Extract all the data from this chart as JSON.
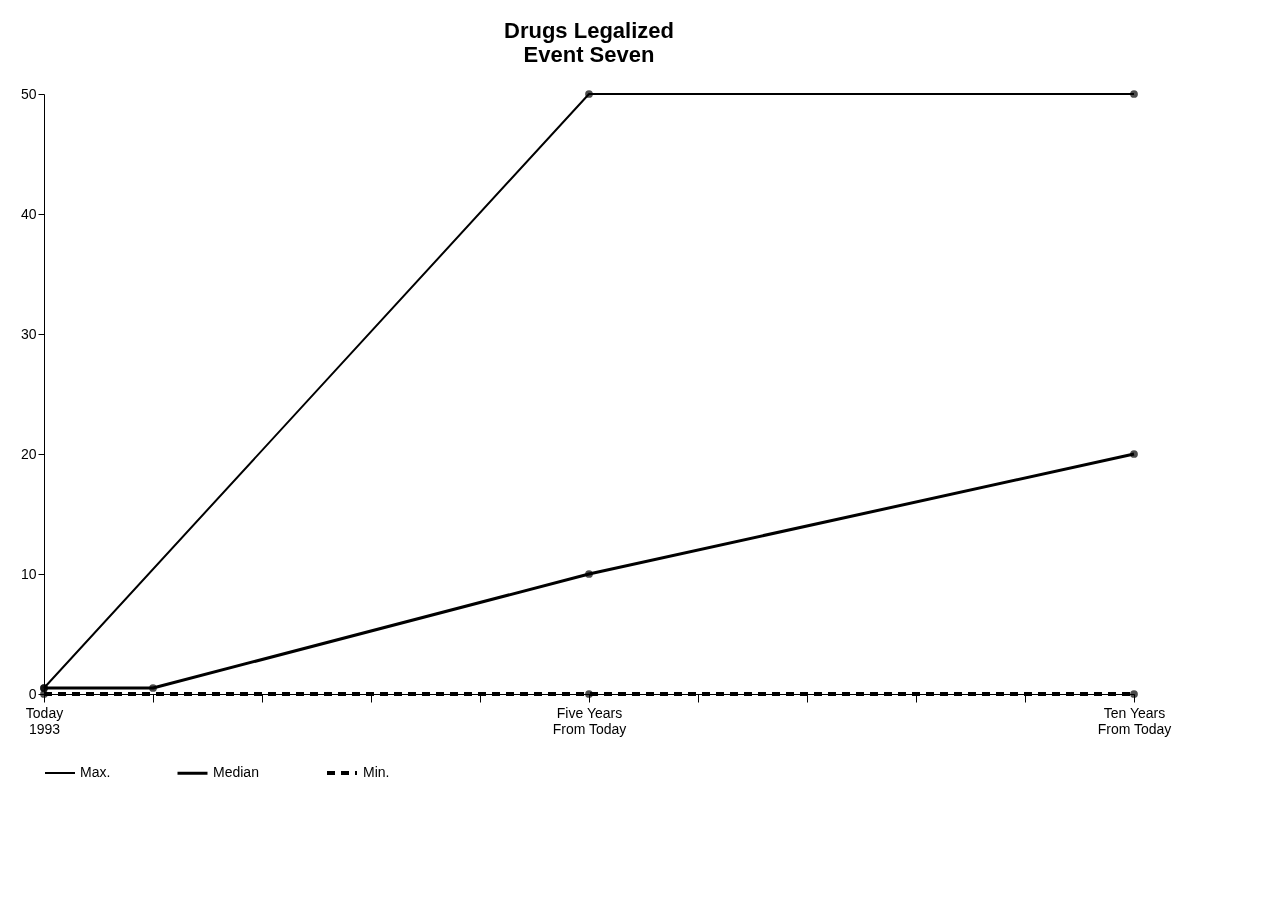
{
  "chart_data": {
    "type": "line",
    "title": "Drugs Legalized\nEvent Seven",
    "categories": [
      "Today\n1993",
      null,
      null,
      null,
      null,
      "Five Years\nFrom Today",
      null,
      null,
      null,
      null,
      "Ten Years\nFrom Today"
    ],
    "ylim": [
      0,
      50
    ],
    "yticks": [
      0,
      10,
      20,
      30,
      40,
      50
    ],
    "series": [
      {
        "name": "Max.",
        "color": "#000000",
        "line_style": "solid",
        "values": [
          0.5,
          null,
          null,
          null,
          null,
          50,
          null,
          null,
          null,
          null,
          50
        ]
      },
      {
        "name": "Median",
        "color": "#000000",
        "line_style": "solid",
        "values": [
          0.5,
          0.5,
          null,
          null,
          null,
          10,
          null,
          null,
          null,
          null,
          20
        ]
      },
      {
        "name": "Min.",
        "color": "#000000",
        "line_style": "dashed",
        "values": [
          0,
          null,
          null,
          null,
          null,
          0,
          null,
          null,
          null,
          null,
          0
        ]
      }
    ],
    "marker": "circle",
    "grid": false,
    "legend": "bottom"
  }
}
